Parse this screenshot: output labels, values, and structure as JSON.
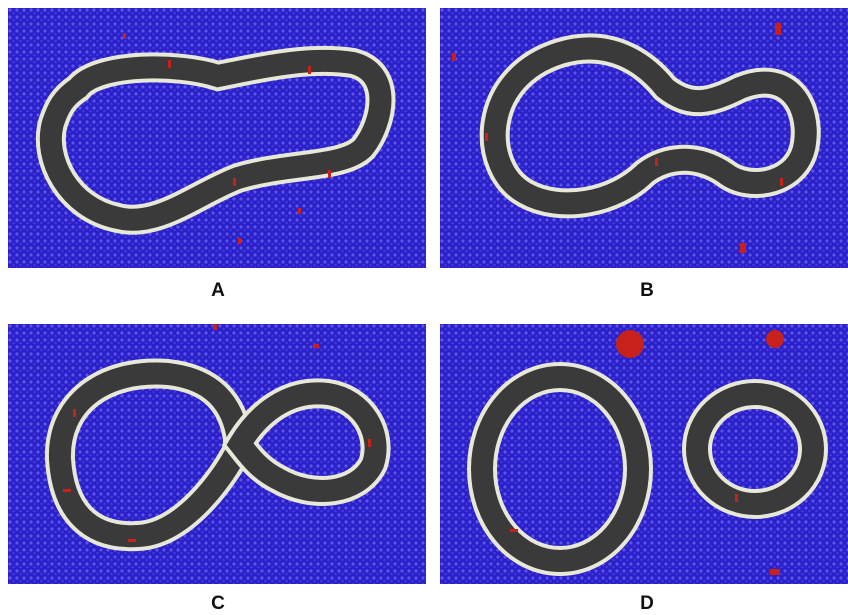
{
  "panels": [
    {
      "id": "A",
      "label": "A",
      "state": "single elongated vesicle"
    },
    {
      "id": "B",
      "label": "B",
      "state": "vesicle with constricted neck"
    },
    {
      "id": "C",
      "label": "C",
      "state": "figure-eight pinch-off"
    },
    {
      "id": "D",
      "label": "D",
      "state": "two separated vesicles"
    }
  ],
  "colors": {
    "solvent": "#2a1fc8",
    "solvent_speckle": "#5a55e6",
    "membrane_core": "#3a3a3a",
    "membrane_head": "#e8e8d8",
    "lipid_tail_red": "#c8201a",
    "label": "#111111",
    "background": "#ffffff"
  }
}
